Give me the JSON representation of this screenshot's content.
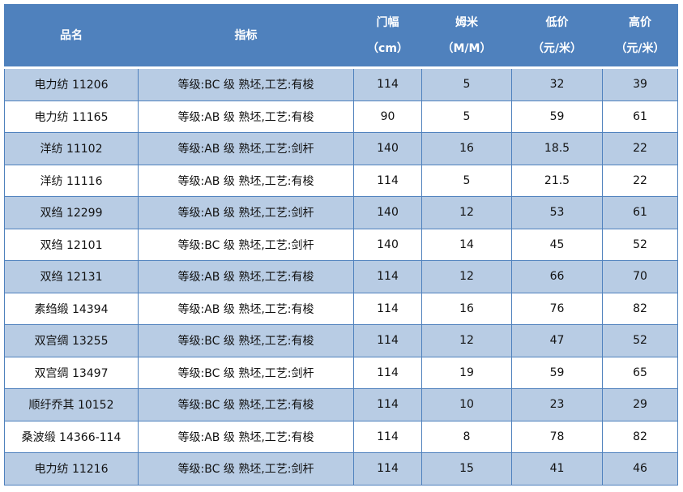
{
  "table": {
    "headers": [
      {
        "line1": "品名",
        "line2": ""
      },
      {
        "line1": "指标",
        "line2": ""
      },
      {
        "line1": "门幅",
        "line2": "（cm）"
      },
      {
        "line1": "姆米",
        "line2": "（M/M）"
      },
      {
        "line1": "低价",
        "line2": "（元/米）"
      },
      {
        "line1": "高价",
        "line2": "（元/米）"
      }
    ],
    "rows": [
      [
        "电力纺 11206",
        "等级:BC 级 熟坯,工艺:有梭",
        "114",
        "5",
        "32",
        "39"
      ],
      [
        "电力纺 11165",
        "等级:AB 级 熟坯,工艺:有梭",
        "90",
        "5",
        "59",
        "61"
      ],
      [
        "洋纺 11102",
        "等级:AB 级 熟坯,工艺:剑杆",
        "140",
        "16",
        "18.5",
        "22"
      ],
      [
        "洋纺 11116",
        "等级:AB 级 熟坯,工艺:有梭",
        "114",
        "5",
        "21.5",
        "22"
      ],
      [
        "双绉 12299",
        "等级:AB 级 熟坯,工艺:剑杆",
        "140",
        "12",
        "53",
        "61"
      ],
      [
        "双绉 12101",
        "等级:BC 级 熟坯,工艺:剑杆",
        "140",
        "14",
        "45",
        "52"
      ],
      [
        "双绉 12131",
        "等级:AB 级 熟坯,工艺:有梭",
        "114",
        "12",
        "66",
        "70"
      ],
      [
        "素绉缎 14394",
        "等级:AB 级 熟坯,工艺:有梭",
        "114",
        "16",
        "76",
        "82"
      ],
      [
        "双宫绸 13255",
        "等级:BC 级 熟坯,工艺:有梭",
        "114",
        "12",
        "47",
        "52"
      ],
      [
        "双宫绸 13497",
        "等级:BC 级 熟坯,工艺:剑杆",
        "114",
        "19",
        "59",
        "65"
      ],
      [
        "顺纡乔其 10152",
        "等级:BC 级 熟坯,工艺:有梭",
        "114",
        "10",
        "23",
        "29"
      ],
      [
        "桑波缎 14366-114",
        "等级:AB 级 熟坯,工艺:有梭",
        "114",
        "8",
        "78",
        "82"
      ],
      [
        "电力纺 11216",
        "等级:BC 级 熟坯,工艺:剑杆",
        "114",
        "15",
        "41",
        "46"
      ]
    ]
  },
  "colors": {
    "header": "#4f81bd",
    "alt_row": "#b8cce4",
    "row": "#ffffff"
  }
}
